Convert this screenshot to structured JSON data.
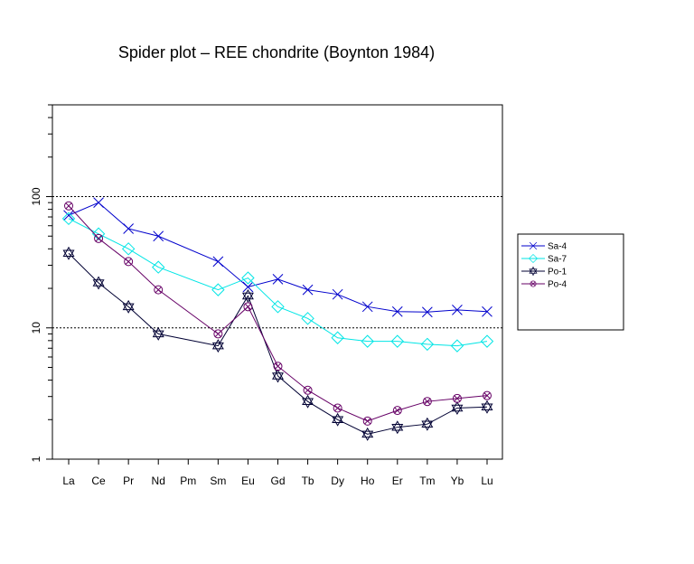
{
  "chart_data": {
    "type": "line",
    "title": "Spider plot –  REE chondrite (Boynton 1984)",
    "xlabel": "",
    "ylabel": "",
    "yscale": "log",
    "ylim": [
      1,
      500
    ],
    "y_ticks": [
      1,
      10,
      100
    ],
    "y_tick_labels": [
      "1",
      "10",
      "100"
    ],
    "gridlines_y": [
      10,
      100
    ],
    "categories": [
      "La",
      "Ce",
      "Pr",
      "Nd",
      "Pm",
      "Sm",
      "Eu",
      "Gd",
      "Tb",
      "Dy",
      "Ho",
      "Er",
      "Tm",
      "Yb",
      "Lu"
    ],
    "legend_position": "right",
    "series": [
      {
        "name": "Sa-4",
        "color": "#0000cc",
        "marker": "x",
        "values": [
          72,
          90,
          57,
          50,
          null,
          32,
          20.5,
          23.5,
          19.5,
          18,
          14.5,
          13.3,
          13.2,
          13.7,
          13.3
        ]
      },
      {
        "name": "Sa-7",
        "color": "#00e5e5",
        "marker": "diamond",
        "values": [
          68,
          52,
          40,
          29,
          null,
          19.5,
          24,
          14.5,
          11.8,
          8.4,
          7.9,
          7.9,
          7.5,
          7.3,
          7.9
        ]
      },
      {
        "name": "Po-1",
        "color": "#000033",
        "marker": "star-of-david",
        "values": [
          37,
          22,
          14.5,
          9.0,
          null,
          7.3,
          17.5,
          4.3,
          2.75,
          2.0,
          1.55,
          1.75,
          1.85,
          2.45,
          2.5
        ]
      },
      {
        "name": "Po-4",
        "color": "#660066",
        "marker": "circle-x",
        "values": [
          85,
          48,
          32,
          19.5,
          null,
          9.0,
          14.5,
          5.1,
          3.35,
          2.45,
          1.95,
          2.35,
          2.75,
          2.9,
          3.05
        ]
      }
    ]
  }
}
